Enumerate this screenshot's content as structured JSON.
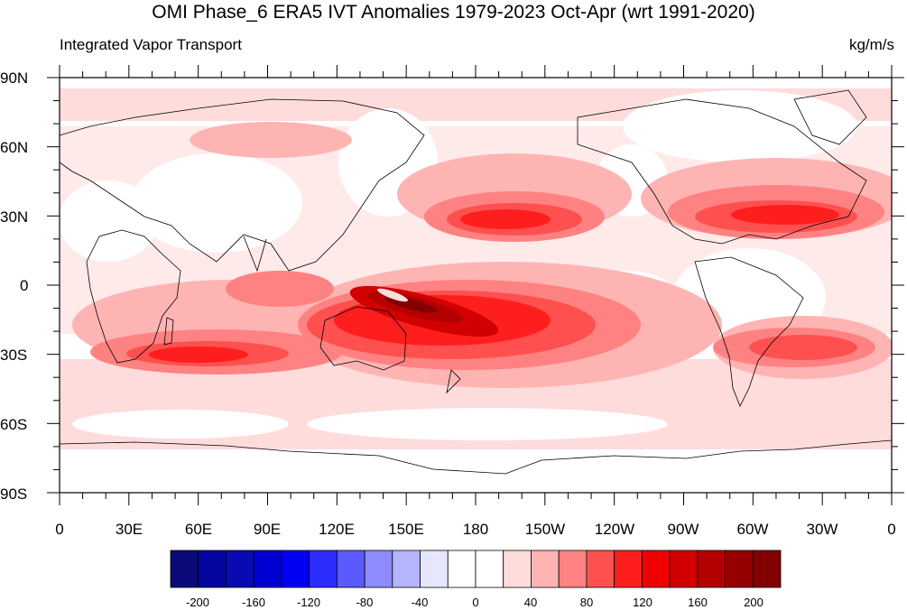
{
  "title": "OMI Phase_6 ERA5 IVT Anomalies 1979-2023 Oct-Apr (wrt 1991-2020)",
  "left_string": "Integrated Vapor Transport",
  "right_string": "kg/m/s",
  "lat_labels": [
    "90N",
    "60N",
    "30N",
    "0",
    "30S",
    "60S",
    "90S"
  ],
  "lon_labels": [
    "0",
    "30E",
    "60E",
    "90E",
    "120E",
    "150E",
    "180",
    "150W",
    "120W",
    "90W",
    "60W",
    "30W",
    "0"
  ],
  "colorbar": {
    "labels": [
      "-200",
      "-160",
      "-120",
      "-80",
      "-40",
      "0",
      "40",
      "80",
      "120",
      "160",
      "200"
    ],
    "colors": [
      "#0a0a78",
      "#0505a0",
      "#0a0ab4",
      "#0000d2",
      "#0000f5",
      "#2d2dff",
      "#5a5aff",
      "#8c8cff",
      "#b4b4ff",
      "#e6e6ff",
      "#ffffff",
      "#ffffff",
      "#ffdcdc",
      "#ffb4b4",
      "#ff8282",
      "#ff5050",
      "#ff1e1e",
      "#f00000",
      "#d20000",
      "#b40000",
      "#960000",
      "#820000"
    ]
  }
}
